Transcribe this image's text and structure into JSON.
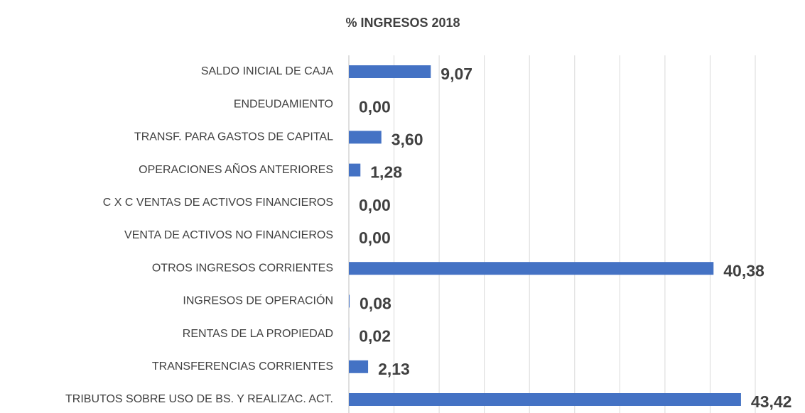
{
  "chart_data": {
    "type": "bar",
    "orientation": "horizontal",
    "title": "% INGRESOS 2018",
    "categories": [
      "SALDO INICIAL DE CAJA",
      "ENDEUDAMIENTO",
      "TRANSF. PARA GASTOS DE CAPITAL",
      "OPERACIONES AÑOS ANTERIORES",
      "C X C VENTAS DE ACTIVOS FINANCIEROS",
      "VENTA DE ACTIVOS NO FINANCIEROS",
      "OTROS INGRESOS CORRIENTES",
      "INGRESOS DE OPERACIÓN",
      "RENTAS DE LA PROPIEDAD",
      "TRANSFERENCIAS CORRIENTES",
      "TRIBUTOS SOBRE USO DE BS. Y  REALIZAC. ACT."
    ],
    "values": [
      9.07,
      0,
      3.6,
      1.28,
      0,
      0,
      40.38,
      0.08,
      0.02,
      2.13,
      43.42
    ],
    "value_labels": [
      "9,07",
      "0,00",
      "3,60",
      "1,28",
      "0,00",
      "0,00",
      "40,38",
      "0,08",
      "0,02",
      "2,13",
      "43,42"
    ],
    "color": "#4472c4",
    "xlim": [
      0,
      45
    ],
    "xticks": [
      0,
      5,
      10,
      15,
      20,
      25,
      30,
      35,
      40,
      45
    ],
    "grid": true
  }
}
